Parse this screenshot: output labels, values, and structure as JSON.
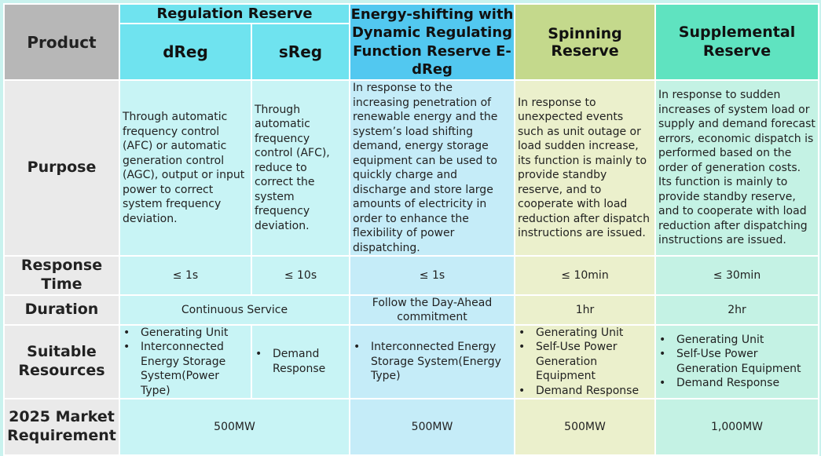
{
  "header": {
    "product": "Product",
    "regulation_reserve": "Regulation Reserve",
    "dreg": "dReg",
    "sreg": "sReg",
    "edreg_title": "Energy-shifting with Dynamic Regulating Function Reserve E-dReg",
    "spinning_reserve": "Spinning Reserve",
    "supplemental_reserve": "Supplemental Reserve"
  },
  "rows": {
    "purpose": {
      "label": "Purpose",
      "dreg": "Through automatic frequency control (AFC) or automatic generation control (AGC), output or input power to correct system frequency deviation.",
      "sreg": "Through automatic frequency control (AFC), reduce to correct the system frequency deviation.",
      "edreg": "In response to the increasing penetration of renewable energy and the system’s load shifting demand, energy storage equipment can be used to quickly charge and discharge and store large amounts of electricity in order to enhance the flexibility of power dispatching.",
      "spinning": "In response to unexpected events such as unit outage or load sudden increase, its function is mainly to provide standby reserve, and to cooperate with load reduction after dispatch instructions are issued.",
      "supplemental": "In response to sudden increases of system load or supply and demand forecast errors, economic dispatch is performed based on the order of generation costs. Its function is mainly to provide standby reserve, and to cooperate with load reduction after dispatching instructions are issued."
    },
    "response_time": {
      "label": "Response Time",
      "dreg": "≤ 1s",
      "sreg": "≤ 10s",
      "edreg": "≤ 1s",
      "spinning": "≤ 10min",
      "supplemental": "≤ 30min"
    },
    "duration": {
      "label": "Duration",
      "regulation": "Continuous Service",
      "edreg": "Follow the Day-Ahead commitment",
      "spinning": "1hr",
      "supplemental": "2hr"
    },
    "suitable_resources": {
      "label": "Suitable Resources",
      "dreg": [
        "Generating Unit",
        "Interconnected Energy Storage System(Power Type)"
      ],
      "sreg": [
        "Demand Response"
      ],
      "edreg": [
        "Interconnected Energy Storage System(Energy Type)"
      ],
      "spinning": [
        "Generating Unit",
        "Self-Use Power Generation Equipment",
        "Demand Response"
      ],
      "supplemental": [
        "Generating Unit",
        "Self-Use Power Generation Equipment",
        "Demand Response"
      ]
    },
    "market_requirement": {
      "label": "2025 Market Requirement",
      "regulation": "500MW",
      "edreg": "500MW",
      "spinning": "500MW",
      "supplemental": "1,000MW"
    }
  }
}
